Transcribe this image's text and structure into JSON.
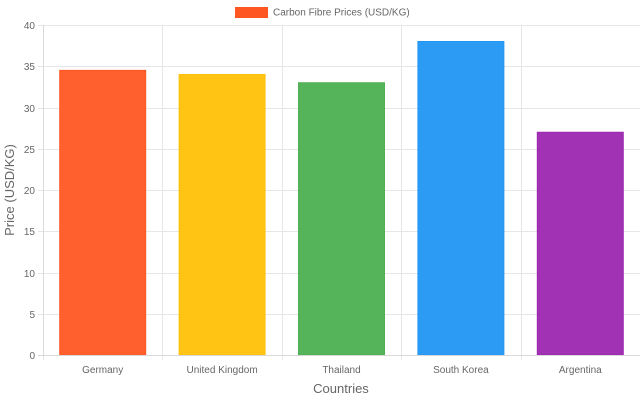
{
  "chart_data": {
    "type": "bar",
    "categories": [
      "Germany",
      "United Kingdom",
      "Thailand",
      "South Korea",
      "Argentina"
    ],
    "series": [
      {
        "name": "Carbon Fibre Prices (USD/KG)",
        "values": [
          34.5,
          34,
          33,
          38,
          27
        ]
      }
    ],
    "colors": [
      "#FF5722",
      "#FFC107",
      "#4CAF50",
      "#2196F3",
      "#9C27B0"
    ],
    "legend_color": "#FF5722",
    "xlabel": "Countries",
    "ylabel": "Price (USD/KG)",
    "ylim": [
      0,
      40
    ],
    "yticks": [
      0,
      5,
      10,
      15,
      20,
      25,
      30,
      35,
      40
    ],
    "grid": true,
    "legend_position": "top-center"
  }
}
